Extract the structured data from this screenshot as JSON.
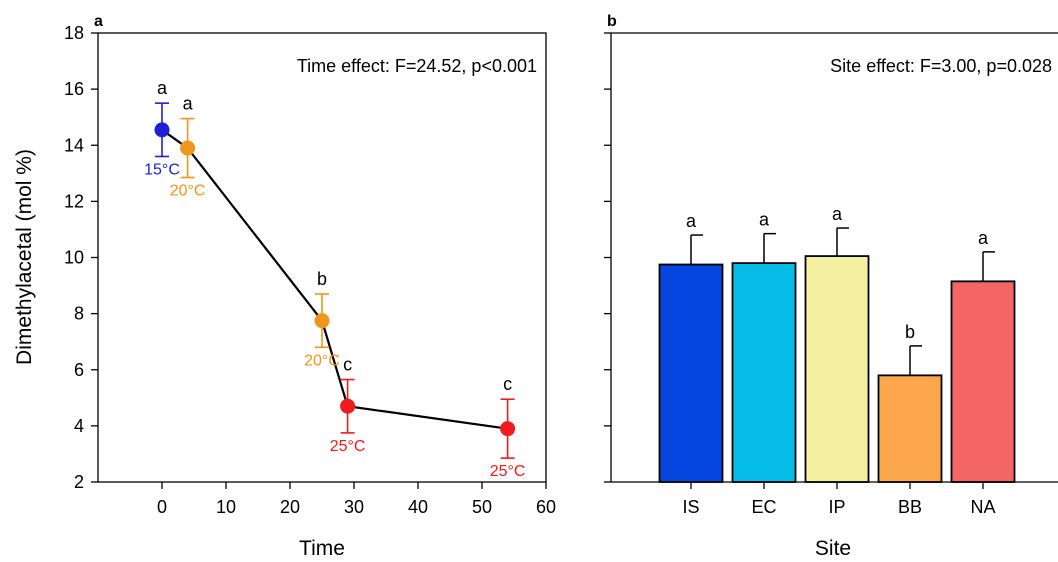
{
  "chart_data": [
    {
      "panel_label": "a",
      "type": "scatter",
      "connected": true,
      "xlabel": "Time",
      "ylabel": "Dimethylacetal (mol %)",
      "xlim": [
        -10,
        60
      ],
      "ylim": [
        2,
        18
      ],
      "xticks": [
        0,
        10,
        20,
        30,
        40,
        50,
        60
      ],
      "yticks": [
        2,
        4,
        6,
        8,
        10,
        12,
        14,
        16,
        18
      ],
      "annotation": "Time effect: F=24.52, p<0.001",
      "points": [
        {
          "x": 0,
          "y": 14.55,
          "error": 0.95,
          "letter": "a",
          "temp_label": "15°C",
          "color": "#1f1fd6"
        },
        {
          "x": 4,
          "y": 13.9,
          "error": 1.05,
          "letter": "a",
          "temp_label": "20°C",
          "color": "#f0961e"
        },
        {
          "x": 25,
          "y": 7.75,
          "error": 0.95,
          "letter": "b",
          "temp_label": "20°C",
          "color": "#f0961e"
        },
        {
          "x": 29,
          "y": 4.7,
          "error": 0.95,
          "letter": "c",
          "temp_label": "25°C",
          "color": "#ee1c1c"
        },
        {
          "x": 54,
          "y": 3.9,
          "error": 1.05,
          "letter": "c",
          "temp_label": "25°C",
          "color": "#ee1c1c"
        }
      ]
    },
    {
      "panel_label": "b",
      "type": "bar",
      "xlabel": "Site",
      "ylabel": "",
      "ylim": [
        2,
        18
      ],
      "annotation": "Site effect: F=3.00, p=0.028",
      "categories": [
        "IS",
        "EC",
        "IP",
        "BB",
        "NA"
      ],
      "values": [
        9.75,
        9.8,
        10.05,
        5.8,
        9.15
      ],
      "errors": [
        1.05,
        1.05,
        1.0,
        1.05,
        1.05
      ],
      "letters": [
        "a",
        "a",
        "a",
        "b",
        "a"
      ],
      "colors": [
        "#0546e0",
        "#05bde6",
        "#f4f0a2",
        "#fba64a",
        "#f46666"
      ]
    }
  ]
}
